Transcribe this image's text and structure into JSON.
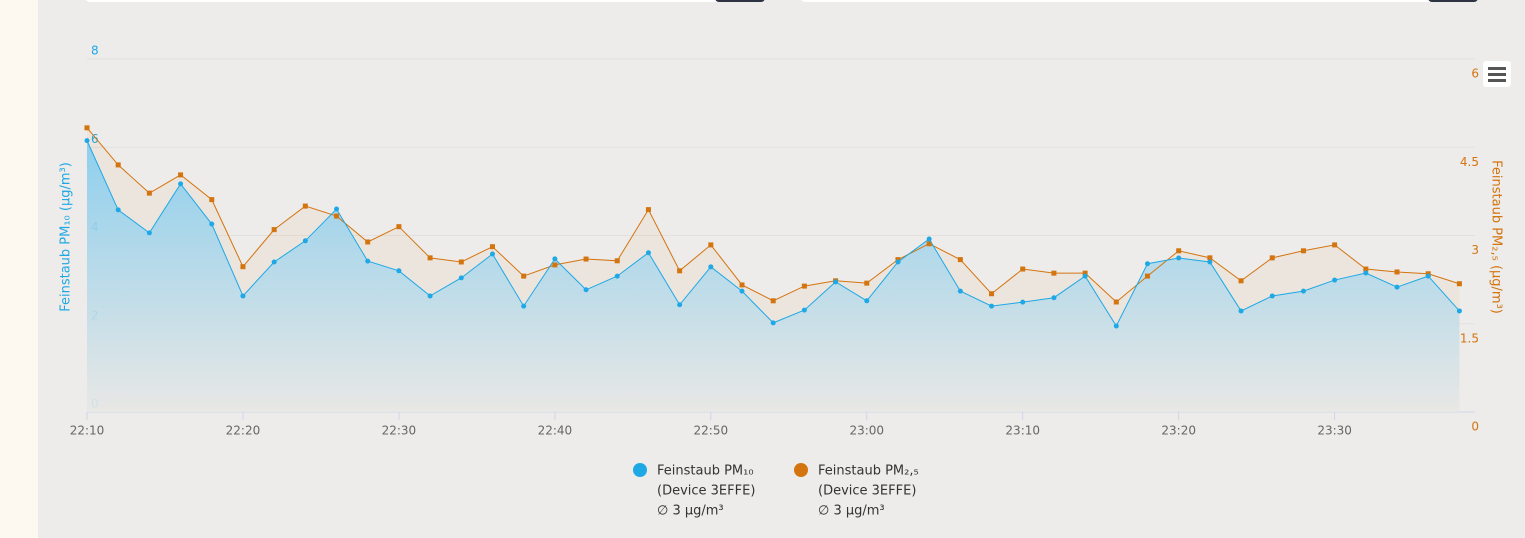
{
  "chart_data": {
    "type": "line",
    "x": [
      "22:10",
      "22:12",
      "22:14",
      "22:16",
      "22:18",
      "22:20",
      "22:22",
      "22:24",
      "22:26",
      "22:28",
      "22:30",
      "22:32",
      "22:34",
      "22:36",
      "22:38",
      "22:40",
      "22:42",
      "22:44",
      "22:46",
      "22:48",
      "22:50",
      "22:52",
      "22:54",
      "22:56",
      "22:58",
      "23:00",
      "23:02",
      "23:04",
      "23:06",
      "23:08",
      "23:10",
      "23:12",
      "23:14",
      "23:16",
      "23:18",
      "23:20",
      "23:22",
      "23:24",
      "23:26",
      "23:28",
      "23:30",
      "23:32",
      "23:34",
      "23:36",
      "23:38"
    ],
    "xlim": [
      "22:10",
      "23:39"
    ],
    "xticks": [
      "22:10",
      "22:20",
      "22:30",
      "22:40",
      "22:50",
      "23:00",
      "23:10",
      "23:20",
      "23:30"
    ],
    "ylabel": "Feinstaub PM₁₀ (µg/m³)",
    "y2label": "Feinstaub PM₂,₅ (µg/m³)",
    "ylim": [
      0,
      8
    ],
    "yticks": [
      0,
      2,
      4,
      6,
      8
    ],
    "y2lim": [
      0,
      6
    ],
    "y2ticks": [
      0,
      1.5,
      3,
      4.5,
      6
    ],
    "grid": true,
    "series": [
      {
        "name": "Feinstaub PM₁₀",
        "device": "(Device 3EFFE)",
        "average": "∅ 3 µg/m³",
        "color": "#1ea8e6",
        "marker": "circle",
        "values": [
          6.15,
          4.58,
          4.06,
          5.17,
          4.26,
          2.63,
          3.4,
          3.88,
          4.6,
          3.42,
          3.2,
          2.63,
          3.04,
          3.58,
          2.4,
          3.47,
          2.77,
          3.08,
          3.61,
          2.43,
          3.29,
          2.74,
          2.02,
          2.31,
          2.95,
          2.52,
          3.4,
          3.92,
          2.74,
          2.4,
          2.49,
          2.59,
          3.08,
          1.95,
          3.36,
          3.49,
          3.4,
          2.29,
          2.63,
          2.74,
          2.99,
          3.15,
          2.83,
          3.08,
          2.29
        ]
      },
      {
        "name": "Feinstaub PM₂,₅",
        "device": "(Device 3EFFE)",
        "average": "∅ 3 µg/m³",
        "color": "#d4740f",
        "marker": "square",
        "axis": "y2",
        "values": [
          4.83,
          4.2,
          3.72,
          4.03,
          3.61,
          2.47,
          3.1,
          3.5,
          3.33,
          2.89,
          3.15,
          2.62,
          2.55,
          2.81,
          2.31,
          2.5,
          2.6,
          2.57,
          3.44,
          2.4,
          2.84,
          2.16,
          1.89,
          2.14,
          2.23,
          2.19,
          2.59,
          2.86,
          2.59,
          2.01,
          2.43,
          2.36,
          2.36,
          1.87,
          2.31,
          2.74,
          2.62,
          2.23,
          2.62,
          2.74,
          2.84,
          2.43,
          2.38,
          2.35,
          2.18
        ]
      }
    ]
  }
}
